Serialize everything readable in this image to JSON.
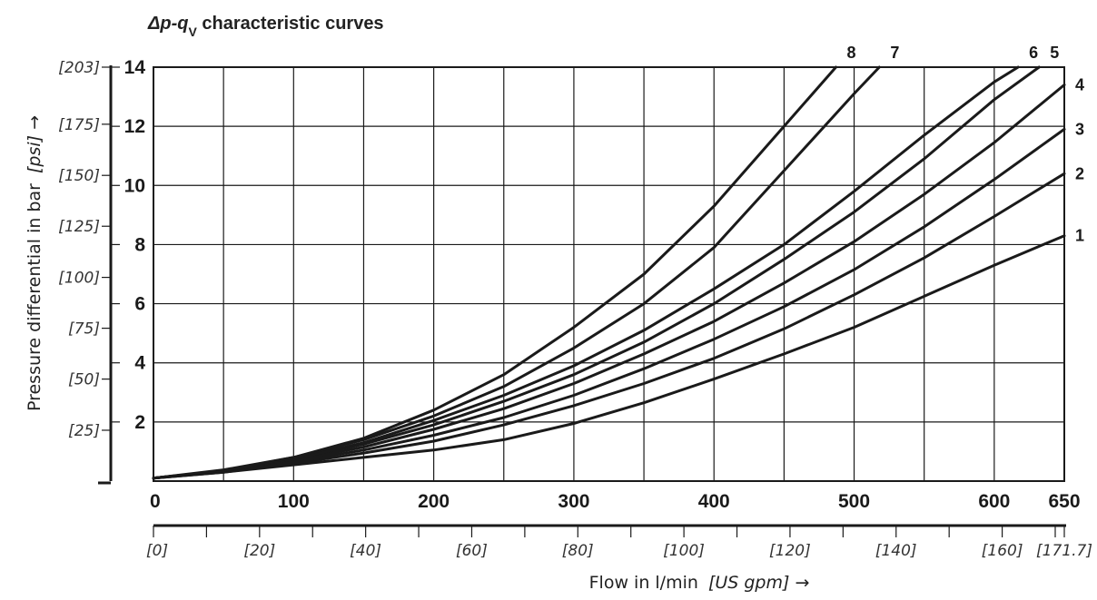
{
  "chart_data": {
    "type": "line",
    "title": "Δp-qV characteristic curves",
    "xlabel": "Flow in l/min",
    "xlabel_secondary": "[US gpm] →",
    "ylabel": "Pressure differential in bar",
    "ylabel_secondary": "[psi] →",
    "xlim": [
      0,
      650
    ],
    "ylim": [
      0,
      14
    ],
    "grid": true,
    "x_ticks": [
      {
        "value": 0,
        "label": "0"
      },
      {
        "value": 100,
        "label": "100"
      },
      {
        "value": 200,
        "label": "200"
      },
      {
        "value": 300,
        "label": "300"
      },
      {
        "value": 400,
        "label": "400"
      },
      {
        "value": 500,
        "label": "500"
      },
      {
        "value": 600,
        "label": "600"
      },
      {
        "value": 650,
        "label": "650"
      }
    ],
    "x_ticks_secondary": [
      {
        "value": 0,
        "label": "[0]"
      },
      {
        "value": 75.7,
        "label": "[20]"
      },
      {
        "value": 151.4,
        "label": "[40]"
      },
      {
        "value": 227.1,
        "label": "[60]"
      },
      {
        "value": 302.8,
        "label": "[80]"
      },
      {
        "value": 378.5,
        "label": "[100]"
      },
      {
        "value": 454.2,
        "label": "[120]"
      },
      {
        "value": 529.9,
        "label": "[140]"
      },
      {
        "value": 605.7,
        "label": "[160]"
      },
      {
        "value": 650,
        "label": "[171.7]"
      }
    ],
    "y_ticks": [
      {
        "value": 2,
        "label": "2"
      },
      {
        "value": 4,
        "label": "4"
      },
      {
        "value": 6,
        "label": "6"
      },
      {
        "value": 8,
        "label": "8"
      },
      {
        "value": 10,
        "label": "10"
      },
      {
        "value": 12,
        "label": "12"
      },
      {
        "value": 14,
        "label": "14"
      }
    ],
    "y_ticks_secondary": [
      {
        "value": 1.72,
        "label": "[25]"
      },
      {
        "value": 3.45,
        "label": "[50]"
      },
      {
        "value": 5.17,
        "label": "[75]"
      },
      {
        "value": 6.89,
        "label": "[100]"
      },
      {
        "value": 8.62,
        "label": "[125]"
      },
      {
        "value": 10.34,
        "label": "[150]"
      },
      {
        "value": 12.07,
        "label": "[175]"
      },
      {
        "value": 14,
        "label": "[203]"
      }
    ],
    "series": [
      {
        "name": "1",
        "x": [
          0,
          50,
          100,
          150,
          200,
          250,
          300,
          350,
          400,
          450,
          500,
          550,
          600,
          650
        ],
        "y": [
          0.1,
          0.3,
          0.55,
          0.8,
          1.05,
          1.4,
          1.95,
          2.65,
          3.45,
          4.3,
          5.2,
          6.25,
          7.3,
          8.3
        ]
      },
      {
        "name": "2",
        "x": [
          0,
          50,
          100,
          150,
          200,
          250,
          300,
          350,
          400,
          450,
          500,
          550,
          600,
          650
        ],
        "y": [
          0.1,
          0.3,
          0.6,
          0.95,
          1.35,
          1.9,
          2.55,
          3.3,
          4.15,
          5.15,
          6.3,
          7.55,
          8.95,
          10.4
        ]
      },
      {
        "name": "3",
        "x": [
          0,
          50,
          100,
          150,
          200,
          250,
          300,
          350,
          400,
          450,
          500,
          550,
          600,
          650
        ],
        "y": [
          0.1,
          0.35,
          0.65,
          1.05,
          1.55,
          2.15,
          2.9,
          3.8,
          4.8,
          5.9,
          7.15,
          8.6,
          10.2,
          11.9
        ]
      },
      {
        "name": "4",
        "x": [
          0,
          50,
          100,
          150,
          200,
          250,
          300,
          350,
          400,
          450,
          500,
          550,
          600,
          650
        ],
        "y": [
          0.1,
          0.35,
          0.7,
          1.15,
          1.75,
          2.45,
          3.3,
          4.3,
          5.4,
          6.7,
          8.1,
          9.7,
          11.45,
          13.4
        ]
      },
      {
        "name": "5",
        "x": [
          0,
          50,
          100,
          150,
          200,
          250,
          300,
          350,
          400,
          450,
          500,
          550,
          600,
          632
        ],
        "y": [
          0.1,
          0.35,
          0.75,
          1.25,
          1.9,
          2.7,
          3.6,
          4.7,
          6.0,
          7.5,
          9.1,
          10.9,
          12.9,
          14
        ]
      },
      {
        "name": "6",
        "x": [
          0,
          50,
          100,
          150,
          200,
          250,
          300,
          350,
          400,
          450,
          500,
          550,
          600,
          617
        ],
        "y": [
          0.1,
          0.35,
          0.75,
          1.3,
          2.05,
          2.9,
          3.9,
          5.1,
          6.5,
          8.0,
          9.8,
          11.7,
          13.5,
          14
        ]
      },
      {
        "name": "7",
        "x": [
          0,
          50,
          100,
          150,
          200,
          250,
          300,
          350,
          400,
          450,
          500,
          518
        ],
        "y": [
          0.1,
          0.35,
          0.8,
          1.4,
          2.2,
          3.2,
          4.5,
          6.0,
          7.9,
          10.5,
          13.1,
          14
        ]
      },
      {
        "name": "8",
        "x": [
          0,
          50,
          100,
          150,
          200,
          250,
          300,
          350,
          400,
          450,
          487
        ],
        "y": [
          0.1,
          0.38,
          0.8,
          1.45,
          2.4,
          3.6,
          5.2,
          7.0,
          9.3,
          12.0,
          14
        ]
      }
    ]
  }
}
